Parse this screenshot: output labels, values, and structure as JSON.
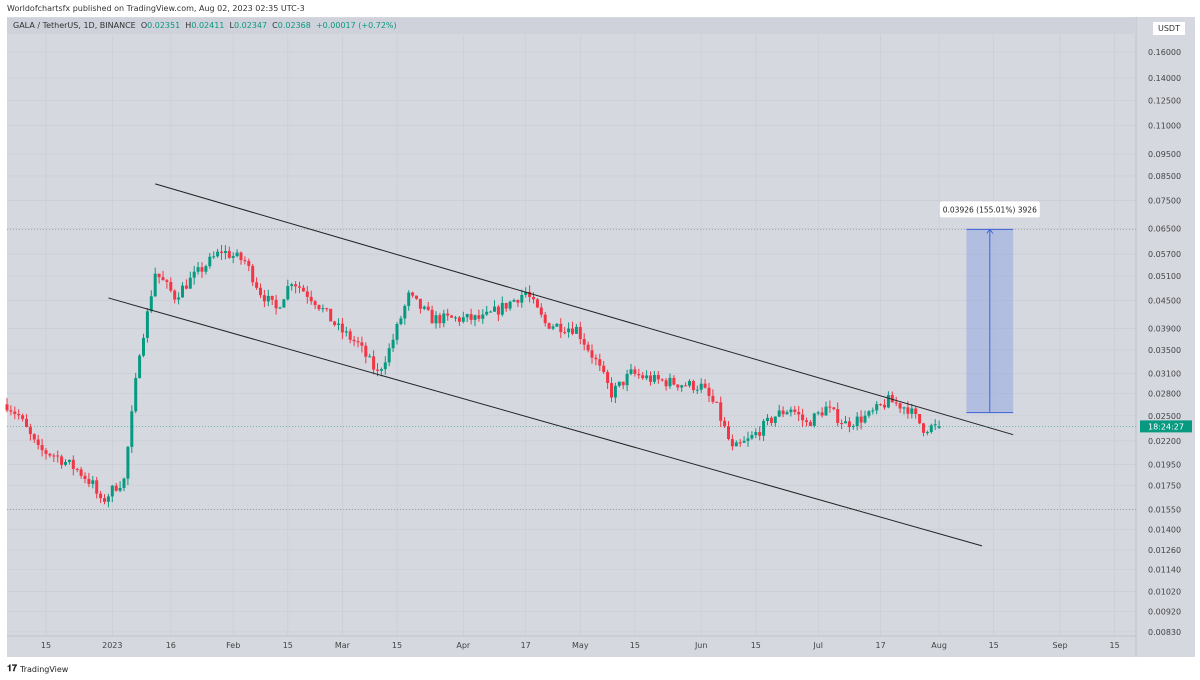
{
  "header": {
    "published": "Worldofchartsfx published on TradingView.com, Aug 02, 2023 02:35 UTC-3",
    "symbol": "GALA / TetherUS, 1D, BINANCE",
    "o_label": "O",
    "o": "0.02351",
    "h_label": "H",
    "h": "0.02411",
    "l_label": "L",
    "l": "0.02347",
    "c_label": "C",
    "c": "0.02368",
    "change": "+0.00017 (+0.72%)"
  },
  "currency": "USDT",
  "countdown": "18:24:27",
  "footer": {
    "brand": "TradingView"
  },
  "colors": {
    "up": "#089981",
    "down": "#f23645",
    "measure": "#6f8fe0",
    "bg": "#d6d8e0"
  },
  "chart_data": {
    "type": "candlestick",
    "title": "GALA / TetherUS, 1D, BINANCE",
    "scale": "log",
    "y_ticks": [
      "0.16000",
      "0.14000",
      "0.12500",
      "0.11000",
      "0.09500",
      "0.08500",
      "0.07500",
      "0.06500",
      "0.05700",
      "0.05100",
      "0.04500",
      "0.03900",
      "0.03500",
      "0.03100",
      "0.02800",
      "0.02500",
      "0.02200",
      "0.01950",
      "0.01750",
      "0.01550",
      "0.01400",
      "0.01260",
      "0.01140",
      "0.01020",
      "0.00920",
      "0.00830"
    ],
    "x_ticks": [
      {
        "day": 10,
        "label": "15"
      },
      {
        "day": 27,
        "label": "2023"
      },
      {
        "day": 42,
        "label": "16"
      },
      {
        "day": 58,
        "label": "Feb"
      },
      {
        "day": 72,
        "label": "15"
      },
      {
        "day": 86,
        "label": "Mar"
      },
      {
        "day": 100,
        "label": "15"
      },
      {
        "day": 117,
        "label": "Apr"
      },
      {
        "day": 133,
        "label": "17"
      },
      {
        "day": 147,
        "label": "May"
      },
      {
        "day": 161,
        "label": "15"
      },
      {
        "day": 178,
        "label": "Jun"
      },
      {
        "day": 192,
        "label": "15"
      },
      {
        "day": 208,
        "label": "Jul"
      },
      {
        "day": 224,
        "label": "17"
      },
      {
        "day": 239,
        "label": "Aug"
      },
      {
        "day": 253,
        "label": "15"
      },
      {
        "day": 270,
        "label": "Sep"
      },
      {
        "day": 284,
        "label": "15"
      }
    ],
    "close_anchors": [
      [
        0,
        0.0265
      ],
      [
        3,
        0.025
      ],
      [
        8,
        0.021
      ],
      [
        12,
        0.0205
      ],
      [
        18,
        0.019
      ],
      [
        22,
        0.0176
      ],
      [
        24,
        0.016
      ],
      [
        28,
        0.0175
      ],
      [
        30,
        0.018
      ],
      [
        32,
        0.025
      ],
      [
        34,
        0.035
      ],
      [
        36,
        0.042
      ],
      [
        38,
        0.052
      ],
      [
        43,
        0.046
      ],
      [
        47,
        0.05
      ],
      [
        52,
        0.055
      ],
      [
        55,
        0.058
      ],
      [
        61,
        0.055
      ],
      [
        65,
        0.047
      ],
      [
        69,
        0.043
      ],
      [
        73,
        0.05
      ],
      [
        79,
        0.045
      ],
      [
        85,
        0.039
      ],
      [
        90,
        0.036
      ],
      [
        95,
        0.031
      ],
      [
        98,
        0.035
      ],
      [
        103,
        0.046
      ],
      [
        109,
        0.041
      ],
      [
        115,
        0.041
      ],
      [
        122,
        0.041
      ],
      [
        128,
        0.044
      ],
      [
        133,
        0.047
      ],
      [
        138,
        0.04
      ],
      [
        146,
        0.039
      ],
      [
        151,
        0.033
      ],
      [
        155,
        0.028
      ],
      [
        160,
        0.031
      ],
      [
        166,
        0.03
      ],
      [
        178,
        0.029
      ],
      [
        182,
        0.026
      ],
      [
        186,
        0.021
      ],
      [
        190,
        0.022
      ],
      [
        197,
        0.025
      ],
      [
        201,
        0.026
      ],
      [
        205,
        0.024
      ],
      [
        210,
        0.026
      ],
      [
        215,
        0.024
      ],
      [
        221,
        0.025
      ],
      [
        226,
        0.027
      ],
      [
        231,
        0.026
      ],
      [
        235,
        0.0235
      ],
      [
        239,
        0.02368
      ]
    ],
    "trendlines": [
      {
        "from": [
          38,
          0.0816
        ],
        "to": [
          258,
          0.0227
        ]
      },
      {
        "from": [
          26,
          0.0456
        ],
        "to": [
          250,
          0.01287
        ]
      }
    ],
    "measure": {
      "label": "0.03926 (155.01%) 3926",
      "from_day": 246,
      "to_day": 258,
      "low": 0.0254,
      "high": 0.0647
    },
    "hlines": [
      0.0647,
      0.0155
    ],
    "last_price": 0.02368
  }
}
